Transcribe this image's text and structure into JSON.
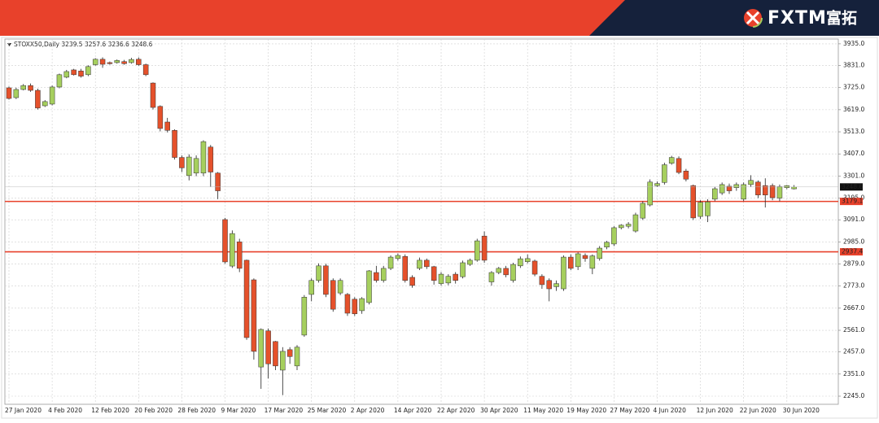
{
  "header": {
    "brand": "FXTM",
    "brand_cn": "富拓"
  },
  "chart_data": {
    "type": "candlestick",
    "title": "STOXX50,Daily  3239.5 3257.6 3236.6 3248.6",
    "categories": [
      "27 Jan 2020",
      null,
      null,
      null,
      null,
      null,
      "4 Feb 2020",
      null,
      null,
      null,
      null,
      null,
      "12 Feb 2020",
      null,
      null,
      null,
      null,
      null,
      "20 Feb 2020",
      null,
      null,
      null,
      null,
      null,
      "28 Feb 2020",
      null,
      null,
      null,
      null,
      null,
      "9 Mar 2020",
      null,
      null,
      null,
      null,
      null,
      "17 Mar 2020",
      null,
      null,
      null,
      null,
      null,
      "25 Mar 2020",
      null,
      null,
      null,
      null,
      null,
      "2 Apr 2020",
      null,
      null,
      null,
      null,
      null,
      "14 Apr 2020",
      null,
      null,
      null,
      null,
      null,
      "22 Apr 2020",
      null,
      null,
      null,
      null,
      null,
      "30 Apr 2020",
      null,
      null,
      null,
      null,
      null,
      "11 May 2020",
      null,
      null,
      null,
      null,
      null,
      "19 May 2020",
      null,
      null,
      null,
      null,
      null,
      "27 May 2020",
      null,
      null,
      null,
      null,
      null,
      "4 Jun 2020",
      null,
      null,
      null,
      null,
      null,
      "12 Jun 2020",
      null,
      null,
      null,
      null,
      null,
      "22 Jun 2020",
      null,
      null,
      null,
      null,
      null,
      "30 Jun 2020",
      null
    ],
    "open": [
      3724,
      3677,
      3716,
      3735,
      3712,
      3638,
      3646,
      3728,
      3775,
      3810,
      3805,
      3787,
      3835,
      3861,
      3845,
      3845,
      3850,
      3845,
      3861,
      3835,
      3747,
      3635,
      3560,
      3520,
      3390,
      3303,
      3315,
      3315,
      3440,
      3315,
      3092,
      2869,
      2985,
      2897,
      2803,
      2385,
      2558,
      2507,
      2370,
      2468,
      2390,
      2538,
      2733,
      2800,
      2870,
      2800,
      2740,
      2733,
      2710,
      2655,
      2694,
      2838,
      2800,
      2858,
      2905,
      2915,
      2815,
      2858,
      2897,
      2866,
      2785,
      2788,
      2830,
      2818,
      2877,
      2897,
      3013,
      2793,
      2838,
      2858,
      2800,
      2870,
      2890,
      2893,
      2820,
      2800,
      2770,
      2760,
      2912,
      2866,
      2920,
      2858,
      2905,
      2960,
      2975,
      3053,
      3060,
      3037,
      3099,
      3162,
      3255,
      3270,
      3362,
      3385,
      3325,
      3255,
      3107,
      3110,
      3190,
      3220,
      3252,
      3245,
      3190,
      3260,
      3272,
      3255,
      3255,
      3195,
      3245,
      3239.5
    ],
    "high": [
      3730,
      3725,
      3742,
      3745,
      3720,
      3665,
      3735,
      3792,
      3810,
      3815,
      3815,
      3832,
      3866,
      3870,
      3850,
      3860,
      3858,
      3868,
      3870,
      3840,
      3750,
      3640,
      3580,
      3525,
      3400,
      3405,
      3400,
      3472,
      3450,
      3320,
      3100,
      3040,
      3000,
      2900,
      2810,
      2570,
      2570,
      2510,
      2480,
      2480,
      2490,
      2730,
      2810,
      2882,
      2880,
      2810,
      2810,
      2740,
      2720,
      2720,
      2850,
      2870,
      2870,
      2920,
      2930,
      2925,
      2825,
      2910,
      2905,
      2870,
      2840,
      2830,
      2840,
      2895,
      2905,
      3000,
      3035,
      2845,
      2865,
      2870,
      2885,
      2915,
      2925,
      2900,
      2830,
      2810,
      2800,
      2920,
      2925,
      2935,
      2930,
      2925,
      2965,
      2990,
      3060,
      3070,
      3080,
      3125,
      3180,
      3285,
      3275,
      3365,
      3398,
      3395,
      3335,
      3260,
      3185,
      3190,
      3250,
      3270,
      3265,
      3270,
      3270,
      3305,
      3280,
      3290,
      3265,
      3260,
      3258,
      3257.6
    ],
    "low": [
      3668,
      3670,
      3712,
      3705,
      3620,
      3632,
      3640,
      3722,
      3770,
      3783,
      3773,
      3780,
      3830,
      3820,
      3835,
      3840,
      3835,
      3840,
      3830,
      3780,
      3620,
      3515,
      3510,
      3380,
      3320,
      3280,
      3300,
      3300,
      3250,
      3190,
      2880,
      2860,
      2840,
      2515,
      2420,
      2280,
      2330,
      2370,
      2250,
      2400,
      2370,
      2530,
      2700,
      2790,
      2720,
      2650,
      2730,
      2630,
      2630,
      2640,
      2685,
      2790,
      2790,
      2850,
      2895,
      2790,
      2765,
      2850,
      2855,
      2780,
      2775,
      2777,
      2785,
      2810,
      2870,
      2890,
      2885,
      2775,
      2830,
      2815,
      2790,
      2860,
      2882,
      2820,
      2760,
      2700,
      2750,
      2750,
      2850,
      2850,
      2890,
      2830,
      2895,
      2950,
      2965,
      3045,
      3050,
      3030,
      3090,
      3155,
      3250,
      3260,
      3355,
      3310,
      3275,
      3090,
      3095,
      3080,
      3180,
      3210,
      3215,
      3230,
      3180,
      3250,
      3195,
      3150,
      3185,
      3180,
      3238,
      3236.6
    ],
    "close": [
      3673,
      3716,
      3735,
      3712,
      3627,
      3658,
      3728,
      3787,
      3802,
      3787,
      3780,
      3826,
      3861,
      3837,
      3840,
      3855,
      3840,
      3860,
      3835,
      3787,
      3630,
      3529,
      3520,
      3390,
      3340,
      3392,
      3385,
      3466,
      3320,
      3230,
      2889,
      3025,
      2858,
      2526,
      2460,
      2565,
      2400,
      2390,
      2460,
      2435,
      2480,
      2720,
      2800,
      2870,
      2733,
      2662,
      2800,
      2643,
      2640,
      2713,
      2846,
      2800,
      2858,
      2912,
      2920,
      2800,
      2776,
      2897,
      2866,
      2800,
      2830,
      2820,
      2800,
      2885,
      2897,
      2990,
      2897,
      2838,
      2858,
      2827,
      2877,
      2904,
      2905,
      2830,
      2780,
      2760,
      2785,
      2912,
      2858,
      2928,
      2905,
      2918,
      2955,
      2983,
      3053,
      3065,
      3070,
      3115,
      3170,
      3272,
      3265,
      3355,
      3390,
      3318,
      3286,
      3100,
      3175,
      3177,
      3240,
      3260,
      3230,
      3260,
      3260,
      3280,
      3210,
      3210,
      3197,
      3250,
      3255,
      3248.6
    ],
    "up_color": "#a6cf5e",
    "down_color": "#e5512b",
    "hlines": [
      3179.1,
      2937.4
    ],
    "hline_color": "#e8412b",
    "ylim": [
      2206,
      3958
    ],
    "yticks": [
      {
        "value": 3935,
        "label": "3935.0"
      },
      {
        "value": 3831,
        "label": "3831.0"
      },
      {
        "value": 3725,
        "label": "3725.0"
      },
      {
        "value": 3619,
        "label": "3619.0"
      },
      {
        "value": 3513,
        "label": "3513.0"
      },
      {
        "value": 3407,
        "label": "3407.0"
      },
      {
        "value": 3301,
        "label": "3301.0"
      },
      {
        "value": 3195,
        "label": "3195.0"
      },
      {
        "value": 3091,
        "label": "3091.0"
      },
      {
        "value": 2985,
        "label": "2985.0"
      },
      {
        "value": 2879,
        "label": "2879.0"
      },
      {
        "value": 2773,
        "label": "2773.0"
      },
      {
        "value": 2667,
        "label": "2667.0"
      },
      {
        "value": 2561,
        "label": "2561.0"
      },
      {
        "value": 2457,
        "label": "2457.0"
      },
      {
        "value": 2351,
        "label": "2351.0"
      },
      {
        "value": 2245,
        "label": "2245.0"
      }
    ],
    "grid": true
  }
}
